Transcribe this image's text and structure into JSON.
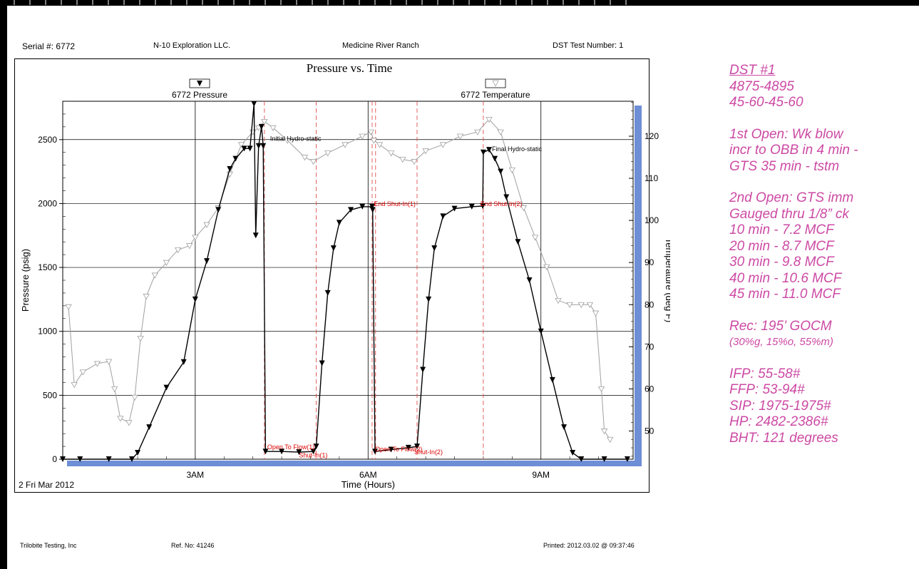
{
  "header": {
    "serial": "Serial #:  6772",
    "company": "N-10 Exploration LLC.",
    "lease": "Medicine River Ranch",
    "test": "DST Test Number: 1"
  },
  "footer": {
    "company": "Trilobite Testing, Inc",
    "ref": "Ref. No:    41246",
    "printed": "Printed: 2012.03.02 @ 09:37:46"
  },
  "chart_data": {
    "type": "line",
    "title": "Pressure vs. Time",
    "xlabel": "Time (Hours)",
    "ylabel": "Pressure (psig)",
    "y2label": "Temperature (deg F)",
    "date_label": "2 Fri Mar 2012",
    "xlim": [
      0.7,
      10.6
    ],
    "ylim": [
      0,
      2800
    ],
    "y2lim": [
      43.3,
      128.3
    ],
    "x_ticks": [
      {
        "v": 3,
        "label": "3AM"
      },
      {
        "v": 6,
        "label": "6AM"
      },
      {
        "v": 9,
        "label": "9AM"
      }
    ],
    "y_ticks": [
      0,
      500,
      1000,
      1500,
      2000,
      2500
    ],
    "y2_ticks": [
      50,
      60,
      70,
      80,
      90,
      100,
      110,
      120
    ],
    "legend": [
      {
        "name": "6772 Pressure",
        "marker": "filled-triangle",
        "color": "#000000"
      },
      {
        "name": "6772 Temperature",
        "marker": "open-triangle",
        "color": "#a0a0a0"
      }
    ],
    "event_lines": [
      4.2,
      5.1,
      6.07,
      6.13,
      6.85,
      8.0
    ],
    "annotations": [
      {
        "x": 4.3,
        "y": 2490,
        "text": "Initial Hydro-static",
        "color": "#000000"
      },
      {
        "x": 6.1,
        "y": 1980,
        "text": "End Shut-In(1)",
        "color": "#dd0000"
      },
      {
        "x": 7.95,
        "y": 1980,
        "text": "End Shut-In(2)",
        "color": "#dd0000"
      },
      {
        "x": 8.15,
        "y": 2410,
        "text": "Final Hydro-static",
        "color": "#000000"
      },
      {
        "x": 4.25,
        "y": 78,
        "text": "Open To Flow(1)",
        "color": "#dd0000"
      },
      {
        "x": 4.8,
        "y": 15,
        "text": "Shut-In(1)",
        "color": "#dd0000"
      },
      {
        "x": 6.12,
        "y": 60,
        "text": "Open To Flow(2)",
        "color": "#dd0000"
      },
      {
        "x": 6.8,
        "y": 40,
        "text": "Shut-In(2)",
        "color": "#dd0000"
      }
    ],
    "colors": {
      "pressure": "#000000",
      "temperature": "#a0a0a0",
      "event": "#e05050",
      "frame": "#6e8ed6"
    },
    "series": [
      {
        "name": "6772 Pressure",
        "axis": "left",
        "points": [
          [
            0.7,
            0
          ],
          [
            1.0,
            0
          ],
          [
            1.5,
            0
          ],
          [
            1.9,
            0
          ],
          [
            2.0,
            50
          ],
          [
            2.2,
            250
          ],
          [
            2.5,
            560
          ],
          [
            2.8,
            760
          ],
          [
            3.0,
            1250
          ],
          [
            3.2,
            1550
          ],
          [
            3.4,
            1950
          ],
          [
            3.6,
            2270
          ],
          [
            3.7,
            2350
          ],
          [
            3.85,
            2430
          ],
          [
            3.95,
            2430
          ],
          [
            4.02,
            2780
          ],
          [
            4.05,
            1750
          ],
          [
            4.1,
            2450
          ],
          [
            4.15,
            2600
          ],
          [
            4.18,
            2450
          ],
          [
            4.22,
            60
          ],
          [
            4.5,
            60
          ],
          [
            4.8,
            55
          ],
          [
            5.05,
            60
          ],
          [
            5.1,
            100
          ],
          [
            5.2,
            750
          ],
          [
            5.3,
            1300
          ],
          [
            5.4,
            1650
          ],
          [
            5.5,
            1850
          ],
          [
            5.7,
            1950
          ],
          [
            5.9,
            1975
          ],
          [
            6.07,
            1975
          ],
          [
            6.08,
            1950
          ],
          [
            6.12,
            60
          ],
          [
            6.4,
            75
          ],
          [
            6.7,
            90
          ],
          [
            6.85,
            100
          ],
          [
            6.95,
            700
          ],
          [
            7.05,
            1250
          ],
          [
            7.15,
            1650
          ],
          [
            7.3,
            1900
          ],
          [
            7.5,
            1960
          ],
          [
            7.8,
            1975
          ],
          [
            7.99,
            1980
          ],
          [
            8.0,
            2400
          ],
          [
            8.1,
            2420
          ],
          [
            8.2,
            2350
          ],
          [
            8.3,
            2250
          ],
          [
            8.4,
            2050
          ],
          [
            8.6,
            1700
          ],
          [
            8.8,
            1400
          ],
          [
            9.0,
            1000
          ],
          [
            9.2,
            620
          ],
          [
            9.4,
            250
          ],
          [
            9.55,
            50
          ],
          [
            9.7,
            0
          ],
          [
            10.1,
            0
          ],
          [
            10.5,
            0
          ]
        ]
      },
      {
        "name": "6772 Temperature",
        "axis": "right",
        "points": [
          [
            0.8,
            79.5
          ],
          [
            0.9,
            61
          ],
          [
            1.05,
            64
          ],
          [
            1.3,
            66
          ],
          [
            1.5,
            66.5
          ],
          [
            1.6,
            60
          ],
          [
            1.7,
            53
          ],
          [
            1.85,
            52
          ],
          [
            1.95,
            58
          ],
          [
            2.05,
            72
          ],
          [
            2.15,
            82
          ],
          [
            2.3,
            87
          ],
          [
            2.5,
            90
          ],
          [
            2.7,
            93
          ],
          [
            2.9,
            94
          ],
          [
            3.0,
            96
          ],
          [
            3.2,
            99
          ],
          [
            3.4,
            103
          ],
          [
            3.6,
            111
          ],
          [
            3.8,
            118
          ],
          [
            4.0,
            121
          ],
          [
            4.1,
            122
          ],
          [
            4.2,
            123.5
          ],
          [
            4.35,
            122
          ],
          [
            4.6,
            119
          ],
          [
            4.9,
            115
          ],
          [
            5.05,
            114
          ],
          [
            5.3,
            116
          ],
          [
            5.6,
            118
          ],
          [
            5.9,
            120
          ],
          [
            6.05,
            121
          ],
          [
            6.1,
            119
          ],
          [
            6.2,
            118
          ],
          [
            6.4,
            116
          ],
          [
            6.6,
            114.5
          ],
          [
            6.8,
            114
          ],
          [
            7.0,
            116.5
          ],
          [
            7.3,
            118
          ],
          [
            7.6,
            120
          ],
          [
            7.9,
            121
          ],
          [
            8.1,
            124
          ],
          [
            8.3,
            121
          ],
          [
            8.5,
            112
          ],
          [
            8.7,
            103
          ],
          [
            8.9,
            96
          ],
          [
            9.1,
            89
          ],
          [
            9.3,
            81
          ],
          [
            9.5,
            80
          ],
          [
            9.7,
            80
          ],
          [
            9.85,
            80
          ],
          [
            9.95,
            78
          ],
          [
            10.05,
            60
          ],
          [
            10.1,
            50
          ],
          [
            10.2,
            48
          ]
        ]
      }
    ]
  },
  "notes": {
    "title": "DST #1",
    "interval": "4875-4895",
    "times": "45-60-45-60",
    "open1": [
      "1st Open:  Wk blow",
      "incr to OBB in 4 min -",
      "GTS 35 min - tstm"
    ],
    "open2": [
      "2nd Open:  GTS imm",
      "Gauged thru 1/8” ck",
      "10 min - 7.2 MCF",
      "20 min - 8.7 MCF",
      "30 min - 9.8 MCF",
      "40 min - 10.6 MCF",
      "45 min - 11.0 MCF"
    ],
    "rec": "Rec:  195’ GOCM",
    "rec_detail": "(30%g, 15%o, 55%m)",
    "pressures": [
      "IFP:  55-58#",
      "FFP:  53-94#",
      "SIP:  1975-1975#",
      "HP:  2482-2386#",
      "BHT:  121 degrees"
    ]
  }
}
